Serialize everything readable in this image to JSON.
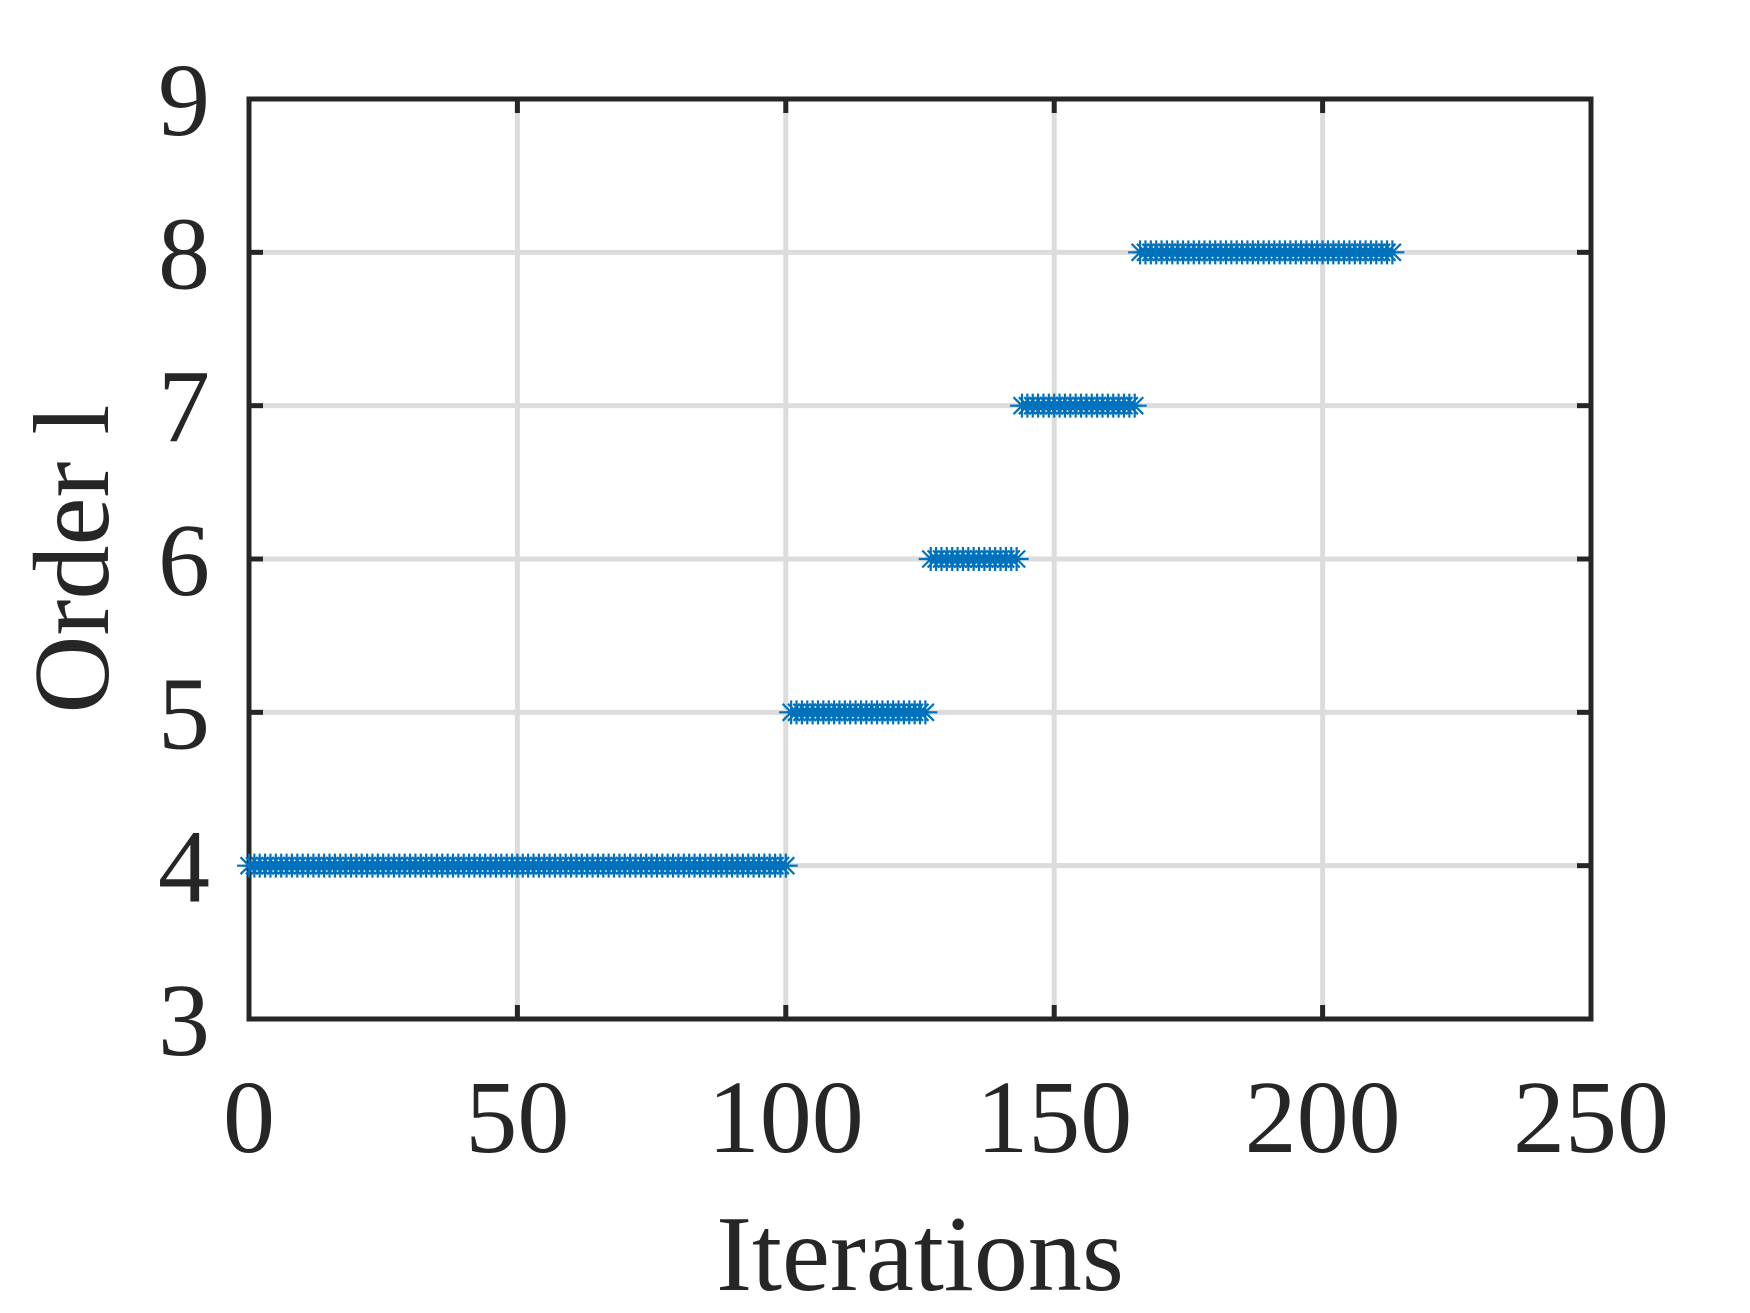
{
  "chart_data": {
    "type": "scatter",
    "xlabel": "Iterations",
    "ylabel": "Order l",
    "xlim": [
      0,
      250
    ],
    "xticks": [
      0,
      50,
      100,
      150,
      200,
      250
    ],
    "ylim": [
      3,
      9
    ],
    "yticks": [
      3,
      4,
      5,
      6,
      7,
      8,
      9
    ],
    "grid": true,
    "series": [
      {
        "color": "#0072BD",
        "x": [
          0,
          1,
          2,
          3,
          4,
          5,
          6,
          7,
          8,
          9,
          10,
          11,
          12,
          13,
          14,
          15,
          16,
          17,
          18,
          19,
          20,
          21,
          22,
          23,
          24,
          25,
          26,
          27,
          28,
          29,
          30,
          31,
          32,
          33,
          34,
          35,
          36,
          37,
          38,
          39,
          40,
          41,
          42,
          43,
          44,
          45,
          46,
          47,
          48,
          49,
          50,
          51,
          52,
          53,
          54,
          55,
          56,
          57,
          58,
          59,
          60,
          61,
          62,
          63,
          64,
          65,
          66,
          67,
          68,
          69,
          70,
          71,
          72,
          73,
          74,
          75,
          76,
          77,
          78,
          79,
          80,
          81,
          82,
          83,
          84,
          85,
          86,
          87,
          88,
          89,
          90,
          91,
          92,
          93,
          94,
          95,
          96,
          97,
          98,
          99,
          100,
          101,
          102,
          103,
          104,
          105,
          106,
          107,
          108,
          109,
          110,
          111,
          112,
          113,
          114,
          115,
          116,
          117,
          118,
          119,
          120,
          121,
          122,
          123,
          124,
          125,
          126,
          127,
          128,
          129,
          130,
          131,
          132,
          133,
          134,
          135,
          136,
          137,
          138,
          139,
          140,
          141,
          142,
          143,
          144,
          145,
          146,
          147,
          148,
          149,
          150,
          151,
          152,
          153,
          154,
          155,
          156,
          157,
          158,
          159,
          160,
          161,
          162,
          163,
          164,
          165,
          166,
          167,
          168,
          169,
          170,
          171,
          172,
          173,
          174,
          175,
          176,
          177,
          178,
          179,
          180,
          181,
          182,
          183,
          184,
          185,
          186,
          187,
          188,
          189,
          190,
          191,
          192,
          193,
          194,
          195,
          196,
          197,
          198,
          199,
          200,
          201,
          202,
          203,
          204,
          205,
          206,
          207,
          208,
          209,
          210,
          211,
          212,
          213
        ],
        "values": [
          4,
          4,
          4,
          4,
          4,
          4,
          4,
          4,
          4,
          4,
          4,
          4,
          4,
          4,
          4,
          4,
          4,
          4,
          4,
          4,
          4,
          4,
          4,
          4,
          4,
          4,
          4,
          4,
          4,
          4,
          4,
          4,
          4,
          4,
          4,
          4,
          4,
          4,
          4,
          4,
          4,
          4,
          4,
          4,
          4,
          4,
          4,
          4,
          4,
          4,
          4,
          4,
          4,
          4,
          4,
          4,
          4,
          4,
          4,
          4,
          4,
          4,
          4,
          4,
          4,
          4,
          4,
          4,
          4,
          4,
          4,
          4,
          4,
          4,
          4,
          4,
          4,
          4,
          4,
          4,
          4,
          4,
          4,
          4,
          4,
          4,
          4,
          4,
          4,
          4,
          4,
          4,
          4,
          4,
          4,
          4,
          4,
          4,
          4,
          4,
          4,
          5,
          5,
          5,
          5,
          5,
          5,
          5,
          5,
          5,
          5,
          5,
          5,
          5,
          5,
          5,
          5,
          5,
          5,
          5,
          5,
          5,
          5,
          5,
          5,
          5,
          5,
          6,
          6,
          6,
          6,
          6,
          6,
          6,
          6,
          6,
          6,
          6,
          6,
          6,
          6,
          6,
          6,
          6,
          7,
          7,
          7,
          7,
          7,
          7,
          7,
          7,
          7,
          7,
          7,
          7,
          7,
          7,
          7,
          7,
          7,
          7,
          7,
          7,
          7,
          7,
          8,
          8,
          8,
          8,
          8,
          8,
          8,
          8,
          8,
          8,
          8,
          8,
          8,
          8,
          8,
          8,
          8,
          8,
          8,
          8,
          8,
          8,
          8,
          8,
          8,
          8,
          8,
          8,
          8,
          8,
          8,
          8,
          8,
          8,
          8,
          8,
          8,
          8,
          8,
          8,
          8,
          8,
          8,
          8,
          8,
          8,
          8,
          8
        ]
      }
    ]
  }
}
